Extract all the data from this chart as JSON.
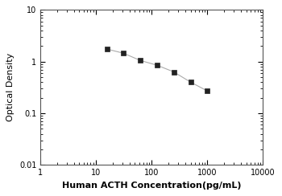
{
  "x_values": [
    15.6,
    31.2,
    62.5,
    125,
    250,
    500,
    1000
  ],
  "y_values": [
    1.75,
    1.45,
    1.05,
    0.85,
    0.63,
    0.4,
    0.27
  ],
  "xlabel": "Human ACTH Concentration(pg/mL)",
  "ylabel": "Optical Density",
  "xlim": [
    1,
    10000
  ],
  "ylim": [
    0.01,
    10
  ],
  "xticks": [
    1,
    10,
    100,
    1000,
    10000
  ],
  "yticks": [
    0.01,
    0.1,
    1,
    10
  ],
  "ytick_labels": [
    "0.01",
    "0.1",
    "1",
    "10"
  ],
  "xtick_labels": [
    "1",
    "10",
    "100",
    "1000",
    "10000"
  ],
  "line_color": "#aaaaaa",
  "marker_color": "#222222",
  "marker_style": "s",
  "marker_size": 4,
  "line_width": 0.8,
  "xlabel_fontsize": 8,
  "ylabel_fontsize": 8,
  "tick_fontsize": 7,
  "spine_color": "#555555"
}
